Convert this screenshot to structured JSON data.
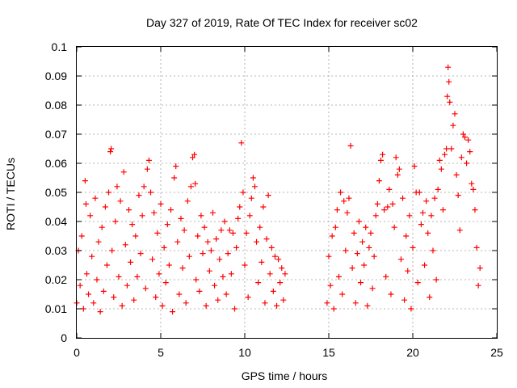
{
  "chart_data": {
    "type": "scatter",
    "title": "Day 327 of 2019, Rate Of TEC Index for receiver sc02",
    "xlabel": "GPS time / hours",
    "ylabel": "ROTI / TECUs",
    "xlim": [
      0,
      25
    ],
    "ylim": [
      0,
      0.1
    ],
    "xticks": [
      0,
      5,
      10,
      15,
      20,
      25
    ],
    "xtick_labels": [
      "0",
      "5",
      "10",
      "15",
      "20",
      "25"
    ],
    "yticks": [
      0,
      0.01,
      0.02,
      0.03,
      0.04,
      0.05,
      0.06,
      0.07,
      0.08,
      0.09,
      0.1
    ],
    "ytick_labels": [
      "0",
      "0.01",
      "0.02",
      "0.03",
      "0.04",
      "0.05",
      "0.06",
      "0.07",
      "0.08",
      "0.09",
      "0.1"
    ],
    "grid": true,
    "marker": "+",
    "series": [
      {
        "name": "ROTI",
        "color": "#ff0000",
        "points": [
          [
            0.0,
            0.012
          ],
          [
            0.1,
            0.03
          ],
          [
            0.2,
            0.018
          ],
          [
            0.3,
            0.035
          ],
          [
            0.4,
            0.01
          ],
          [
            0.5,
            0.054
          ],
          [
            0.55,
            0.046
          ],
          [
            0.6,
            0.022
          ],
          [
            0.7,
            0.015
          ],
          [
            0.8,
            0.042
          ],
          [
            0.9,
            0.028
          ],
          [
            1.0,
            0.012
          ],
          [
            1.1,
            0.048
          ],
          [
            1.2,
            0.02
          ],
          [
            1.3,
            0.033
          ],
          [
            1.4,
            0.009
          ],
          [
            1.5,
            0.038
          ],
          [
            1.6,
            0.016
          ],
          [
            1.7,
            0.045
          ],
          [
            1.8,
            0.025
          ],
          [
            1.9,
            0.05
          ],
          [
            2.0,
            0.064
          ],
          [
            2.05,
            0.065
          ],
          [
            2.1,
            0.03
          ],
          [
            2.2,
            0.014
          ],
          [
            2.3,
            0.04
          ],
          [
            2.4,
            0.052
          ],
          [
            2.5,
            0.021
          ],
          [
            2.6,
            0.047
          ],
          [
            2.7,
            0.011
          ],
          [
            2.8,
            0.057
          ],
          [
            2.9,
            0.032
          ],
          [
            3.0,
            0.018
          ],
          [
            3.1,
            0.044
          ],
          [
            3.2,
            0.026
          ],
          [
            3.3,
            0.039
          ],
          [
            3.4,
            0.013
          ],
          [
            3.5,
            0.035
          ],
          [
            3.6,
            0.021
          ],
          [
            3.7,
            0.049
          ],
          [
            3.8,
            0.029
          ],
          [
            3.9,
            0.042
          ],
          [
            4.0,
            0.052
          ],
          [
            4.1,
            0.017
          ],
          [
            4.2,
            0.058
          ],
          [
            4.3,
            0.061
          ],
          [
            4.4,
            0.05
          ],
          [
            4.5,
            0.027
          ],
          [
            4.6,
            0.043
          ],
          [
            4.7,
            0.014
          ],
          [
            4.8,
            0.036
          ],
          [
            4.9,
            0.022
          ],
          [
            5.0,
            0.046
          ],
          [
            5.1,
            0.011
          ],
          [
            5.2,
            0.031
          ],
          [
            5.3,
            0.019
          ],
          [
            5.4,
            0.039
          ],
          [
            5.5,
            0.025
          ],
          [
            5.6,
            0.044
          ],
          [
            5.7,
            0.009
          ],
          [
            5.8,
            0.055
          ],
          [
            5.9,
            0.059
          ],
          [
            6.0,
            0.033
          ],
          [
            6.1,
            0.015
          ],
          [
            6.2,
            0.041
          ],
          [
            6.3,
            0.024
          ],
          [
            6.4,
            0.037
          ],
          [
            6.5,
            0.012
          ],
          [
            6.6,
            0.047
          ],
          [
            6.7,
            0.028
          ],
          [
            6.8,
            0.052
          ],
          [
            6.9,
            0.062
          ],
          [
            7.0,
            0.063
          ],
          [
            7.05,
            0.053
          ],
          [
            7.1,
            0.02
          ],
          [
            7.2,
            0.035
          ],
          [
            7.3,
            0.016
          ],
          [
            7.4,
            0.042
          ],
          [
            7.5,
            0.029
          ],
          [
            7.6,
            0.038
          ],
          [
            7.7,
            0.011
          ],
          [
            7.8,
            0.033
          ],
          [
            7.9,
            0.023
          ],
          [
            8.0,
            0.03
          ],
          [
            8.1,
            0.043
          ],
          [
            8.2,
            0.018
          ],
          [
            8.3,
            0.034
          ],
          [
            8.4,
            0.013
          ],
          [
            8.5,
            0.027
          ],
          [
            8.6,
            0.037
          ],
          [
            8.7,
            0.021
          ],
          [
            8.8,
            0.04
          ],
          [
            8.9,
            0.015
          ],
          [
            9.0,
            0.029
          ],
          [
            9.1,
            0.037
          ],
          [
            9.2,
            0.022
          ],
          [
            9.3,
            0.036
          ],
          [
            9.4,
            0.01
          ],
          [
            9.5,
            0.031
          ],
          [
            9.6,
            0.041
          ],
          [
            9.7,
            0.045
          ],
          [
            9.8,
            0.067
          ],
          [
            9.9,
            0.05
          ],
          [
            10.0,
            0.025
          ],
          [
            10.1,
            0.036
          ],
          [
            10.2,
            0.014
          ],
          [
            10.3,
            0.042
          ],
          [
            10.4,
            0.048
          ],
          [
            10.5,
            0.055
          ],
          [
            10.6,
            0.052
          ],
          [
            10.7,
            0.033
          ],
          [
            10.8,
            0.019
          ],
          [
            10.9,
            0.038
          ],
          [
            11.0,
            0.026
          ],
          [
            11.1,
            0.045
          ],
          [
            11.2,
            0.012
          ],
          [
            11.3,
            0.034
          ],
          [
            11.4,
            0.049
          ],
          [
            11.5,
            0.022
          ],
          [
            11.6,
            0.031
          ],
          [
            11.7,
            0.016
          ],
          [
            11.8,
            0.028
          ],
          [
            11.9,
            0.011
          ],
          [
            12.0,
            0.027
          ],
          [
            12.1,
            0.019
          ],
          [
            12.2,
            0.024
          ],
          [
            12.3,
            0.013
          ],
          [
            12.4,
            0.022
          ],
          [
            14.9,
            0.012
          ],
          [
            15.0,
            0.028
          ],
          [
            15.1,
            0.018
          ],
          [
            15.2,
            0.035
          ],
          [
            15.3,
            0.01
          ],
          [
            15.4,
            0.038
          ],
          [
            15.5,
            0.044
          ],
          [
            15.6,
            0.021
          ],
          [
            15.7,
            0.05
          ],
          [
            15.8,
            0.015
          ],
          [
            15.9,
            0.047
          ],
          [
            16.0,
            0.03
          ],
          [
            16.1,
            0.043
          ],
          [
            16.2,
            0.048
          ],
          [
            16.3,
            0.066
          ],
          [
            16.4,
            0.024
          ],
          [
            16.5,
            0.036
          ],
          [
            16.6,
            0.012
          ],
          [
            16.7,
            0.029
          ],
          [
            16.8,
            0.04
          ],
          [
            16.9,
            0.019
          ],
          [
            17.0,
            0.033
          ],
          [
            17.1,
            0.025
          ],
          [
            17.2,
            0.038
          ],
          [
            17.3,
            0.011
          ],
          [
            17.4,
            0.031
          ],
          [
            17.5,
            0.036
          ],
          [
            17.6,
            0.017
          ],
          [
            17.7,
            0.028
          ],
          [
            17.8,
            0.042
          ],
          [
            17.9,
            0.046
          ],
          [
            18.0,
            0.054
          ],
          [
            18.1,
            0.061
          ],
          [
            18.2,
            0.063
          ],
          [
            18.3,
            0.044
          ],
          [
            18.4,
            0.021
          ],
          [
            18.5,
            0.045
          ],
          [
            18.6,
            0.051
          ],
          [
            18.7,
            0.015
          ],
          [
            18.8,
            0.046
          ],
          [
            18.9,
            0.038
          ],
          [
            19.0,
            0.062
          ],
          [
            19.1,
            0.056
          ],
          [
            19.2,
            0.058
          ],
          [
            19.3,
            0.027
          ],
          [
            19.4,
            0.048
          ],
          [
            19.5,
            0.013
          ],
          [
            19.6,
            0.035
          ],
          [
            19.7,
            0.023
          ],
          [
            19.8,
            0.042
          ],
          [
            19.9,
            0.01
          ],
          [
            20.0,
            0.031
          ],
          [
            20.1,
            0.059
          ],
          [
            20.2,
            0.05
          ],
          [
            20.3,
            0.019
          ],
          [
            20.4,
            0.05
          ],
          [
            20.5,
            0.039
          ],
          [
            20.6,
            0.043
          ],
          [
            20.7,
            0.025
          ],
          [
            20.8,
            0.047
          ],
          [
            20.9,
            0.036
          ],
          [
            21.0,
            0.014
          ],
          [
            21.1,
            0.042
          ],
          [
            21.2,
            0.03
          ],
          [
            21.3,
            0.048
          ],
          [
            21.4,
            0.02
          ],
          [
            21.5,
            0.051
          ],
          [
            21.6,
            0.061
          ],
          [
            21.7,
            0.058
          ],
          [
            21.8,
            0.044
          ],
          [
            21.9,
            0.063
          ],
          [
            22.0,
            0.065
          ],
          [
            22.05,
            0.083
          ],
          [
            22.1,
            0.093
          ],
          [
            22.15,
            0.088
          ],
          [
            22.2,
            0.081
          ],
          [
            22.3,
            0.065
          ],
          [
            22.4,
            0.073
          ],
          [
            22.5,
            0.077
          ],
          [
            22.6,
            0.056
          ],
          [
            22.7,
            0.049
          ],
          [
            22.8,
            0.037
          ],
          [
            22.9,
            0.062
          ],
          [
            23.0,
            0.07
          ],
          [
            23.1,
            0.069
          ],
          [
            23.2,
            0.06
          ],
          [
            23.3,
            0.068
          ],
          [
            23.4,
            0.064
          ],
          [
            23.5,
            0.053
          ],
          [
            23.6,
            0.051
          ],
          [
            23.7,
            0.044
          ],
          [
            23.8,
            0.031
          ],
          [
            23.9,
            0.018
          ],
          [
            24.0,
            0.024
          ]
        ]
      }
    ]
  }
}
